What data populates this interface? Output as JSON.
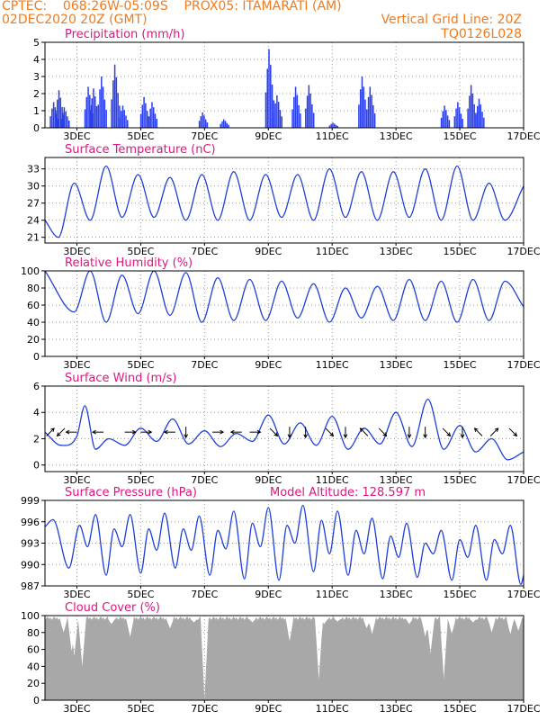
{
  "header": {
    "line1": "CPTEC:    068:26W-05:09S    PROX05: ITAMARATI (AM)",
    "line2": "02DEC2020 20Z (GMT)",
    "grid_note": "Vertical Grid Line: 20Z",
    "run_id": "TQ0126L028"
  },
  "colors": {
    "header": "#f07a1e",
    "title": "#e0157f",
    "line": "#1f3fd8",
    "bar": "#2a3ff0",
    "cloud": "#a8a8a8",
    "grid": "#9a9a9a"
  },
  "x_tick_labels": [
    "3DEC",
    "5DEC",
    "7DEC",
    "9DEC",
    "11DEC",
    "13DEC",
    "15DEC",
    "17DEC"
  ],
  "chart_data": [
    {
      "type": "bar",
      "title": "Precipitation (mm/h)",
      "xlim": [
        "02DEC2020 20Z",
        "17DEC2020 20Z"
      ],
      "ylim": [
        0,
        5
      ],
      "yticks": [
        0,
        1,
        2,
        3,
        4,
        5
      ],
      "grid": true,
      "events": [
        {
          "x": "03DEC 02Z",
          "y": 1.5
        },
        {
          "x": "03DEC 06Z",
          "y": 2.2
        },
        {
          "x": "03DEC 10Z",
          "y": 1.2
        },
        {
          "x": "04DEC 04Z",
          "y": 2.4
        },
        {
          "x": "04DEC 08Z",
          "y": 2.3
        },
        {
          "x": "04DEC 14Z",
          "y": 3.0
        },
        {
          "x": "05DEC 00Z",
          "y": 3.7
        },
        {
          "x": "05DEC 06Z",
          "y": 1.3
        },
        {
          "x": "05DEC 22Z",
          "y": 1.8
        },
        {
          "x": "06DEC 04Z",
          "y": 1.5
        },
        {
          "x": "07DEC 18Z",
          "y": 0.9
        },
        {
          "x": "08DEC 10Z",
          "y": 0.5
        },
        {
          "x": "09DEC 20Z",
          "y": 4.6
        },
        {
          "x": "10DEC 02Z",
          "y": 1.9
        },
        {
          "x": "10DEC 16Z",
          "y": 2.4
        },
        {
          "x": "11DEC 02Z",
          "y": 2.5
        },
        {
          "x": "11DEC 20Z",
          "y": 0.3
        },
        {
          "x": "12DEC 18Z",
          "y": 3.0
        },
        {
          "x": "13DEC 00Z",
          "y": 2.4
        },
        {
          "x": "15DEC 08Z",
          "y": 1.3
        },
        {
          "x": "15DEC 18Z",
          "y": 1.5
        },
        {
          "x": "16DEC 04Z",
          "y": 2.5
        },
        {
          "x": "16DEC 10Z",
          "y": 1.7
        }
      ]
    },
    {
      "type": "line",
      "title": "Surface Temperature (nC)",
      "xlim": [
        "02DEC2020 20Z",
        "17DEC2020 20Z"
      ],
      "ylim": [
        20,
        35
      ],
      "yticks": [
        21,
        24,
        27,
        30,
        33
      ],
      "grid": true,
      "daily_extremes": [
        {
          "x": "02DEC 20Z",
          "y": 24
        },
        {
          "x": "03DEC 06Z",
          "y": 21
        },
        {
          "x": "03DEC 18Z",
          "y": 30.5
        },
        {
          "x": "04DEC 06Z",
          "y": 24
        },
        {
          "x": "04DEC 18Z",
          "y": 33.5
        },
        {
          "x": "05DEC 06Z",
          "y": 24.5
        },
        {
          "x": "05DEC 18Z",
          "y": 32
        },
        {
          "x": "06DEC 06Z",
          "y": 24.5
        },
        {
          "x": "06DEC 18Z",
          "y": 31.5
        },
        {
          "x": "07DEC 06Z",
          "y": 24
        },
        {
          "x": "07DEC 18Z",
          "y": 32
        },
        {
          "x": "08DEC 06Z",
          "y": 24
        },
        {
          "x": "08DEC 18Z",
          "y": 32.5
        },
        {
          "x": "09DEC 06Z",
          "y": 24
        },
        {
          "x": "09DEC 18Z",
          "y": 32
        },
        {
          "x": "10DEC 06Z",
          "y": 24.5
        },
        {
          "x": "10DEC 18Z",
          "y": 32
        },
        {
          "x": "11DEC 06Z",
          "y": 24
        },
        {
          "x": "11DEC 18Z",
          "y": 33
        },
        {
          "x": "12DEC 06Z",
          "y": 24.5
        },
        {
          "x": "12DEC 18Z",
          "y": 32.5
        },
        {
          "x": "13DEC 06Z",
          "y": 24
        },
        {
          "x": "13DEC 18Z",
          "y": 32.5
        },
        {
          "x": "14DEC 06Z",
          "y": 24.5
        },
        {
          "x": "14DEC 18Z",
          "y": 33
        },
        {
          "x": "15DEC 06Z",
          "y": 24
        },
        {
          "x": "15DEC 18Z",
          "y": 33.5
        },
        {
          "x": "16DEC 06Z",
          "y": 24
        },
        {
          "x": "16DEC 18Z",
          "y": 30.5
        },
        {
          "x": "17DEC 06Z",
          "y": 24
        },
        {
          "x": "17DEC 20Z",
          "y": 30
        }
      ]
    },
    {
      "type": "line",
      "title": "Relative Humidity (%)",
      "xlim": [
        "02DEC2020 20Z",
        "17DEC2020 20Z"
      ],
      "ylim": [
        0,
        100
      ],
      "yticks": [
        0,
        20,
        40,
        60,
        80,
        100
      ],
      "grid": true,
      "daily_extremes": [
        {
          "x": "02DEC 20Z",
          "y": 100
        },
        {
          "x": "03DEC 18Z",
          "y": 52
        },
        {
          "x": "04DEC 06Z",
          "y": 100
        },
        {
          "x": "04DEC 18Z",
          "y": 40
        },
        {
          "x": "05DEC 06Z",
          "y": 95
        },
        {
          "x": "05DEC 18Z",
          "y": 50
        },
        {
          "x": "06DEC 06Z",
          "y": 100
        },
        {
          "x": "06DEC 18Z",
          "y": 48
        },
        {
          "x": "07DEC 06Z",
          "y": 98
        },
        {
          "x": "07DEC 18Z",
          "y": 40
        },
        {
          "x": "08DEC 06Z",
          "y": 92
        },
        {
          "x": "08DEC 18Z",
          "y": 42
        },
        {
          "x": "09DEC 06Z",
          "y": 90
        },
        {
          "x": "09DEC 18Z",
          "y": 42
        },
        {
          "x": "10DEC 06Z",
          "y": 88
        },
        {
          "x": "10DEC 18Z",
          "y": 45
        },
        {
          "x": "11DEC 06Z",
          "y": 85
        },
        {
          "x": "11DEC 18Z",
          "y": 40
        },
        {
          "x": "12DEC 06Z",
          "y": 80
        },
        {
          "x": "12DEC 18Z",
          "y": 45
        },
        {
          "x": "13DEC 06Z",
          "y": 82
        },
        {
          "x": "13DEC 18Z",
          "y": 42
        },
        {
          "x": "14DEC 06Z",
          "y": 90
        },
        {
          "x": "14DEC 18Z",
          "y": 42
        },
        {
          "x": "15DEC 06Z",
          "y": 88
        },
        {
          "x": "15DEC 18Z",
          "y": 40
        },
        {
          "x": "16DEC 06Z",
          "y": 90
        },
        {
          "x": "16DEC 18Z",
          "y": 42
        },
        {
          "x": "17DEC 06Z",
          "y": 88
        },
        {
          "x": "17DEC 20Z",
          "y": 58
        }
      ]
    },
    {
      "type": "line",
      "title": "Surface Wind (m/s)",
      "xlim": [
        "02DEC2020 20Z",
        "17DEC2020 20Z"
      ],
      "ylim": [
        -0.5,
        6
      ],
      "yticks": [
        0,
        2,
        4,
        6
      ],
      "grid": true,
      "speed": [
        {
          "x": "02DEC 20Z",
          "y": 2.5
        },
        {
          "x": "03DEC 08Z",
          "y": 1.5
        },
        {
          "x": "03DEC 20Z",
          "y": 2.2
        },
        {
          "x": "04DEC 02Z",
          "y": 4.5
        },
        {
          "x": "04DEC 10Z",
          "y": 1.2
        },
        {
          "x": "04DEC 20Z",
          "y": 2.0
        },
        {
          "x": "05DEC 08Z",
          "y": 1.5
        },
        {
          "x": "05DEC 20Z",
          "y": 2.8
        },
        {
          "x": "06DEC 08Z",
          "y": 1.8
        },
        {
          "x": "06DEC 20Z",
          "y": 3.5
        },
        {
          "x": "07DEC 08Z",
          "y": 1.6
        },
        {
          "x": "07DEC 20Z",
          "y": 2.6
        },
        {
          "x": "08DEC 08Z",
          "y": 1.4
        },
        {
          "x": "08DEC 20Z",
          "y": 2.4
        },
        {
          "x": "09DEC 08Z",
          "y": 1.8
        },
        {
          "x": "09DEC 20Z",
          "y": 3.8
        },
        {
          "x": "10DEC 08Z",
          "y": 1.6
        },
        {
          "x": "10DEC 20Z",
          "y": 3.2
        },
        {
          "x": "11DEC 08Z",
          "y": 1.5
        },
        {
          "x": "11DEC 20Z",
          "y": 3.7
        },
        {
          "x": "12DEC 08Z",
          "y": 1.2
        },
        {
          "x": "12DEC 20Z",
          "y": 2.8
        },
        {
          "x": "13DEC 08Z",
          "y": 1.6
        },
        {
          "x": "13DEC 20Z",
          "y": 4.0
        },
        {
          "x": "14DEC 08Z",
          "y": 1.4
        },
        {
          "x": "14DEC 20Z",
          "y": 5.0
        },
        {
          "x": "15DEC 08Z",
          "y": 1.2
        },
        {
          "x": "15DEC 20Z",
          "y": 3.0
        },
        {
          "x": "16DEC 08Z",
          "y": 1.0
        },
        {
          "x": "16DEC 20Z",
          "y": 2.0
        },
        {
          "x": "17DEC 08Z",
          "y": 0.4
        },
        {
          "x": "17DEC 20Z",
          "y": 1.0
        }
      ],
      "vectors": [
        {
          "x": "03DEC 00Z",
          "dir": "ne"
        },
        {
          "x": "03DEC 08Z",
          "dir": "sw"
        },
        {
          "x": "03DEC 16Z",
          "dir": "w"
        },
        {
          "x": "04DEC 12Z",
          "dir": "w"
        },
        {
          "x": "05DEC 12Z",
          "dir": "e"
        },
        {
          "x": "06DEC 00Z",
          "dir": "e"
        },
        {
          "x": "06DEC 18Z",
          "dir": "w"
        },
        {
          "x": "07DEC 06Z",
          "dir": "s"
        },
        {
          "x": "08DEC 06Z",
          "dir": "e"
        },
        {
          "x": "08DEC 20Z",
          "dir": "w"
        },
        {
          "x": "09DEC 10Z",
          "dir": "e"
        },
        {
          "x": "10DEC 00Z",
          "dir": "se"
        },
        {
          "x": "10DEC 12Z",
          "dir": "s"
        },
        {
          "x": "11DEC 00Z",
          "dir": "s"
        },
        {
          "x": "11DEC 18Z",
          "dir": "se"
        },
        {
          "x": "12DEC 06Z",
          "dir": "s"
        },
        {
          "x": "12DEC 20Z",
          "dir": "nw"
        },
        {
          "x": "13DEC 10Z",
          "dir": "se"
        },
        {
          "x": "14DEC 06Z",
          "dir": "s"
        },
        {
          "x": "14DEC 18Z",
          "dir": "s"
        },
        {
          "x": "15DEC 10Z",
          "dir": "se"
        },
        {
          "x": "15DEC 22Z",
          "dir": "s"
        },
        {
          "x": "16DEC 10Z",
          "dir": "nw"
        },
        {
          "x": "16DEC 22Z",
          "dir": "ne"
        },
        {
          "x": "17DEC 12Z",
          "dir": "se"
        }
      ]
    },
    {
      "type": "line",
      "title": "Surface Pressure (hPa)",
      "annotation": "Model Altitude: 128.597 m",
      "xlim": [
        "02DEC2020 20Z",
        "17DEC2020 20Z"
      ],
      "ylim": [
        987,
        999
      ],
      "yticks": [
        987,
        990,
        993,
        996,
        999
      ],
      "grid": true,
      "extremes": [
        {
          "x": "02DEC 20Z",
          "y": 995.3
        },
        {
          "x": "03DEC 02Z",
          "y": 996.3
        },
        {
          "x": "03DEC 14Z",
          "y": 989.5
        },
        {
          "x": "03DEC 22Z",
          "y": 995.5
        },
        {
          "x": "04DEC 04Z",
          "y": 992.5
        },
        {
          "x": "04DEC 10Z",
          "y": 997.0
        },
        {
          "x": "04DEC 18Z",
          "y": 988.5
        },
        {
          "x": "05DEC 00Z",
          "y": 995.0
        },
        {
          "x": "05DEC 06Z",
          "y": 992.5
        },
        {
          "x": "05DEC 12Z",
          "y": 997.0
        },
        {
          "x": "05DEC 20Z",
          "y": 988.8
        },
        {
          "x": "06DEC 02Z",
          "y": 995.0
        },
        {
          "x": "06DEC 08Z",
          "y": 992.0
        },
        {
          "x": "06DEC 14Z",
          "y": 997.2
        },
        {
          "x": "06DEC 22Z",
          "y": 989.5
        },
        {
          "x": "07DEC 04Z",
          "y": 995.0
        },
        {
          "x": "07DEC 10Z",
          "y": 992.0
        },
        {
          "x": "07DEC 16Z",
          "y": 996.8
        },
        {
          "x": "08DEC 00Z",
          "y": 988.5
        },
        {
          "x": "08DEC 06Z",
          "y": 994.8
        },
        {
          "x": "08DEC 12Z",
          "y": 992.2
        },
        {
          "x": "08DEC 18Z",
          "y": 997.5
        },
        {
          "x": "09DEC 02Z",
          "y": 988.0
        },
        {
          "x": "09DEC 08Z",
          "y": 995.8
        },
        {
          "x": "09DEC 14Z",
          "y": 992.5
        },
        {
          "x": "09DEC 20Z",
          "y": 998.0
        },
        {
          "x": "10DEC 04Z",
          "y": 987.8
        },
        {
          "x": "10DEC 10Z",
          "y": 995.5
        },
        {
          "x": "10DEC 16Z",
          "y": 993.0
        },
        {
          "x": "10DEC 22Z",
          "y": 998.3
        },
        {
          "x": "11DEC 06Z",
          "y": 989.0
        },
        {
          "x": "11DEC 12Z",
          "y": 996.2
        },
        {
          "x": "11DEC 18Z",
          "y": 991.5
        },
        {
          "x": "12DEC 00Z",
          "y": 997.5
        },
        {
          "x": "12DEC 08Z",
          "y": 988.5
        },
        {
          "x": "12DEC 14Z",
          "y": 994.8
        },
        {
          "x": "12DEC 20Z",
          "y": 991.5
        },
        {
          "x": "13DEC 02Z",
          "y": 996.5
        },
        {
          "x": "13DEC 10Z",
          "y": 988.0
        },
        {
          "x": "13DEC 16Z",
          "y": 994.0
        },
        {
          "x": "13DEC 22Z",
          "y": 991.0
        },
        {
          "x": "14DEC 04Z",
          "y": 995.8
        },
        {
          "x": "14DEC 12Z",
          "y": 988.2
        },
        {
          "x": "14DEC 18Z",
          "y": 993.0
        },
        {
          "x": "15DEC 00Z",
          "y": 991.5
        },
        {
          "x": "15DEC 06Z",
          "y": 994.8
        },
        {
          "x": "15DEC 14Z",
          "y": 987.8
        },
        {
          "x": "15DEC 20Z",
          "y": 993.5
        },
        {
          "x": "16DEC 02Z",
          "y": 991.0
        },
        {
          "x": "16DEC 08Z",
          "y": 995.5
        },
        {
          "x": "16DEC 16Z",
          "y": 987.8
        },
        {
          "x": "16DEC 22Z",
          "y": 993.5
        },
        {
          "x": "17DEC 04Z",
          "y": 991.5
        },
        {
          "x": "17DEC 10Z",
          "y": 995.5
        },
        {
          "x": "17DEC 18Z",
          "y": 987.2
        },
        {
          "x": "17DEC 20Z",
          "y": 988.5
        }
      ]
    },
    {
      "type": "area",
      "title": "Cloud Cover (%)",
      "xlim": [
        "02DEC2020 20Z",
        "17DEC2020 20Z"
      ],
      "ylim": [
        0,
        100
      ],
      "yticks": [
        0,
        20,
        40,
        60,
        80,
        100
      ],
      "grid": true,
      "typical_cover": 97,
      "dips": [
        {
          "x": "03DEC 10Z",
          "y": 80
        },
        {
          "x": "03DEC 16Z",
          "y": 58
        },
        {
          "x": "03DEC 18Z",
          "y": 52
        },
        {
          "x": "04DEC 00Z",
          "y": 40
        },
        {
          "x": "04DEC 22Z",
          "y": 90
        },
        {
          "x": "05DEC 12Z",
          "y": 75
        },
        {
          "x": "06DEC 18Z",
          "y": 85
        },
        {
          "x": "07DEC 12Z",
          "y": 92
        },
        {
          "x": "07DEC 20Z",
          "y": 1
        },
        {
          "x": "09DEC 08Z",
          "y": 92
        },
        {
          "x": "10DEC 12Z",
          "y": 70
        },
        {
          "x": "11DEC 10Z",
          "y": 25
        },
        {
          "x": "11DEC 14Z",
          "y": 90
        },
        {
          "x": "12DEC 00Z",
          "y": 93
        },
        {
          "x": "12DEC 22Z",
          "y": 85
        },
        {
          "x": "13DEC 02Z",
          "y": 78
        },
        {
          "x": "14DEC 06Z",
          "y": 90
        },
        {
          "x": "14DEC 18Z",
          "y": 75
        },
        {
          "x": "14DEC 22Z",
          "y": 55
        },
        {
          "x": "15DEC 08Z",
          "y": 25
        },
        {
          "x": "15DEC 14Z",
          "y": 78
        },
        {
          "x": "16DEC 06Z",
          "y": 92
        },
        {
          "x": "16DEC 20Z",
          "y": 80
        },
        {
          "x": "17DEC 10Z",
          "y": 78
        },
        {
          "x": "17DEC 16Z",
          "y": 82
        }
      ]
    }
  ]
}
